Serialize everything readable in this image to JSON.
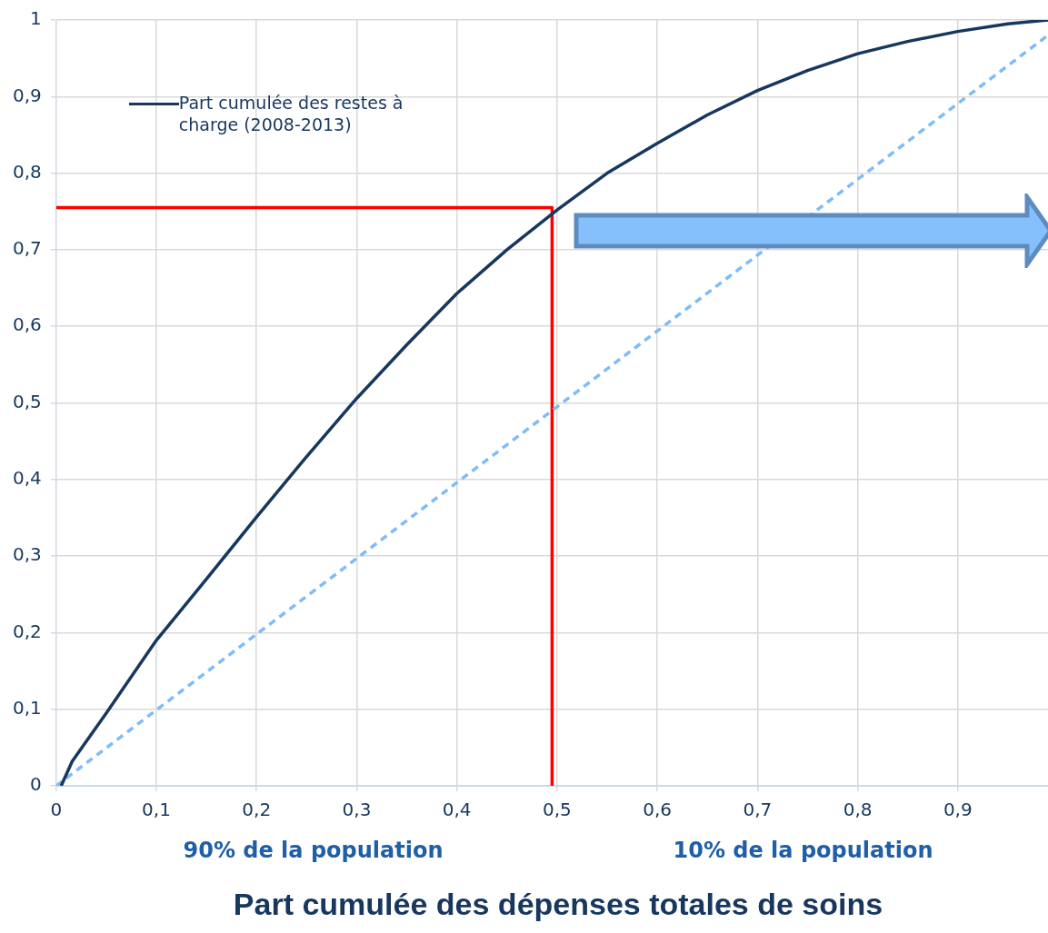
{
  "chart_data": {
    "type": "line",
    "xlabel": "Part cumulée des dépenses totales de soins",
    "annotations": [
      "90% de la population",
      "10% de la population"
    ],
    "series": [
      {
        "name": "Part cumulée des restes à charge (2008-2013)",
        "color": "#17375e",
        "x": [
          0.005,
          0.016,
          0.05,
          0.1,
          0.15,
          0.2,
          0.25,
          0.3,
          0.35,
          0.4,
          0.45,
          0.5,
          0.55,
          0.6,
          0.65,
          0.7,
          0.75,
          0.8,
          0.85,
          0.9,
          0.95,
          0.99
        ],
        "values": [
          0,
          0.032,
          0.095,
          0.19,
          0.27,
          0.351,
          0.43,
          0.506,
          0.576,
          0.643,
          0.7,
          0.752,
          0.8,
          0.839,
          0.876,
          0.908,
          0.934,
          0.956,
          0.972,
          0.985,
          0.995,
          1.0
        ]
      },
      {
        "color": "#7fbcf8",
        "line_style": "dashed",
        "x": [
          0,
          0.99
        ],
        "values": [
          0,
          0.98
        ]
      },
      {
        "color": "#ff0000",
        "x": [
          0,
          0.495,
          0.495
        ],
        "values": [
          0.755,
          0.755,
          0
        ]
      }
    ],
    "xlim": [
      0,
      0.99
    ],
    "ylim": [
      0,
      1
    ],
    "xticks": [
      0,
      {
        "value": 0.1,
        "label": "0,1"
      },
      {
        "value": 0.2,
        "label": "0,2"
      },
      {
        "value": 0.3,
        "label": "0,3"
      },
      {
        "value": 0.4,
        "label": "0,4"
      },
      {
        "value": 0.5,
        "label": "0,5"
      },
      {
        "value": 0.6,
        "label": "0,6"
      },
      {
        "value": 0.7,
        "label": "0,7"
      },
      {
        "value": 0.8,
        "label": "0,8"
      },
      {
        "value": 0.9,
        "label": "0,9"
      }
    ],
    "yticks": [
      0,
      {
        "value": 0.1,
        "label": "0,1"
      },
      {
        "value": 0.2,
        "label": "0,2"
      },
      {
        "value": 0.3,
        "label": "0,3"
      },
      {
        "value": 0.4,
        "label": "0,4"
      },
      {
        "value": 0.5,
        "label": "0,5"
      },
      {
        "value": 0.6,
        "label": "0,6"
      },
      {
        "value": 0.7,
        "label": "0,7"
      },
      {
        "value": 0.8,
        "label": "0,8"
      },
      {
        "value": 0.9,
        "label": "0,9"
      },
      1
    ],
    "grid": true,
    "legend": "top left",
    "marker": "none",
    "line_style": "solid"
  }
}
